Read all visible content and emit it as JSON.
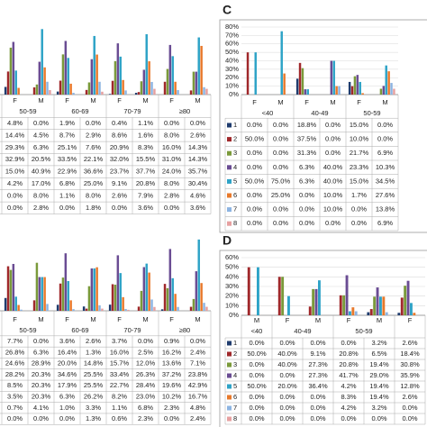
{
  "chart_data": [
    {
      "type": "bar",
      "groups": [
        {
          "label": "50-59",
          "categories": [
            "F",
            "M"
          ]
        },
        {
          "label": "60-69",
          "categories": [
            "F",
            "M"
          ]
        },
        {
          "label": "70-79",
          "categories": [
            "F",
            "M"
          ]
        },
        {
          "label": "≥80",
          "categories": [
            "F",
            "M"
          ]
        }
      ],
      "series": [
        {
          "color": "#1F3C6E",
          "values": [
            4.8,
            0.0,
            1.9,
            0.0,
            0.4,
            1.1,
            0.0,
            0.0
          ],
          "value_labels": [
            "4.8%",
            "0.0%",
            "1.9%",
            "0.0%",
            "0.4%",
            "1.1%",
            "0.0%",
            "0.0%"
          ]
        },
        {
          "color": "#A0282B",
          "values": [
            14.4,
            4.5,
            8.7,
            2.9,
            8.6,
            1.6,
            8.0,
            2.6
          ],
          "value_labels": [
            "14.4%",
            "4.5%",
            "8.7%",
            "2.9%",
            "8.6%",
            "1.6%",
            "8.0%",
            "2.6%"
          ]
        },
        {
          "color": "#7A9A3A",
          "values": [
            29.3,
            6.3,
            25.1,
            7.6,
            20.9,
            8.3,
            16.0,
            14.3
          ],
          "value_labels": [
            "29.3%",
            "6.3%",
            "25.1%",
            "7.6%",
            "20.9%",
            "8.3%",
            "16.0%",
            "14.3%"
          ]
        },
        {
          "color": "#6A4C93",
          "values": [
            32.9,
            20.5,
            33.5,
            22.1,
            32.0,
            15.5,
            31.0,
            14.3
          ],
          "value_labels": [
            "32.9%",
            "20.5%",
            "33.5%",
            "22.1%",
            "32.0%",
            "15.5%",
            "31.0%",
            "14.3%"
          ]
        },
        {
          "color": "#2EA3C7",
          "values": [
            15.0,
            40.9,
            22.9,
            36.6,
            23.7,
            37.7,
            24.0,
            35.7
          ],
          "value_labels": [
            "15.0%",
            "40.9%",
            "22.9%",
            "36.6%",
            "23.7%",
            "37.7%",
            "24.0%",
            "35.7%"
          ]
        },
        {
          "color": "#E8792B",
          "values": [
            4.2,
            17.0,
            6.8,
            25.0,
            9.1,
            20.8,
            8.0,
            30.4
          ],
          "value_labels": [
            "4.2%",
            "17.0%",
            "6.8%",
            "25.0%",
            "9.1%",
            "20.8%",
            "8.0%",
            "30.4%"
          ]
        },
        {
          "color": "#8DB4E2",
          "values": [
            0.0,
            8.0,
            1.1,
            8.0,
            2.6,
            7.9,
            2.8,
            4.6
          ],
          "value_labels": [
            "0.0%",
            "8.0%",
            "1.1%",
            "8.0%",
            "2.6%",
            "7.9%",
            "2.8%",
            "4.6%"
          ]
        },
        {
          "color": "#E6A0A0",
          "values": [
            0.0,
            2.8,
            0.0,
            1.8,
            0.0,
            3.6,
            0.0,
            3.6
          ],
          "value_labels": [
            "0.0%",
            "2.8%",
            "0.0%",
            "1.8%",
            "0.0%",
            "3.6%",
            "0.0%",
            "3.6%"
          ]
        }
      ],
      "ylim": [
        0,
        45
      ],
      "grid": false
    },
    {
      "type": "bar",
      "groups": [
        {
          "label": "50-59",
          "categories": [
            "F",
            "M"
          ]
        },
        {
          "label": "60-69",
          "categories": [
            "F",
            "M"
          ]
        },
        {
          "label": "70-79",
          "categories": [
            "F",
            "M"
          ]
        },
        {
          "label": "≥80",
          "categories": [
            "F",
            "M"
          ]
        }
      ],
      "series": [
        {
          "color": "#1F3C6E",
          "values": [
            7.7,
            0.0,
            3.6,
            2.6,
            3.7,
            0.0,
            0.9,
            0.0
          ],
          "value_labels": [
            "7.7%",
            "0.0%",
            "3.6%",
            "2.6%",
            "3.7%",
            "0.0%",
            "0.9%",
            "0.0%"
          ]
        },
        {
          "color": "#A0282B",
          "values": [
            26.8,
            6.3,
            16.4,
            1.3,
            16.0,
            2.5,
            16.2,
            2.4
          ],
          "value_labels": [
            "26.8%",
            "6.3%",
            "16.4%",
            "1.3%",
            "16.0%",
            "2.5%",
            "16.2%",
            "2.4%"
          ]
        },
        {
          "color": "#7A9A3A",
          "values": [
            24.6,
            28.9,
            20.0,
            14.8,
            15.7,
            12.0,
            13.6,
            7.1
          ],
          "value_labels": [
            "24.6%",
            "28.9%",
            "20.0%",
            "14.8%",
            "15.7%",
            "12.0%",
            "13.6%",
            "7.1%"
          ]
        },
        {
          "color": "#6A4C93",
          "values": [
            28.2,
            20.3,
            34.6,
            25.5,
            33.4,
            26.3,
            37.2,
            23.8
          ],
          "value_labels": [
            "28.2%",
            "20.3%",
            "34.6%",
            "25.5%",
            "33.4%",
            "26.3%",
            "37.2%",
            "23.8%"
          ]
        },
        {
          "color": "#2EA3C7",
          "values": [
            8.5,
            20.3,
            17.9,
            25.5,
            22.7,
            28.4,
            19.6,
            42.9
          ],
          "value_labels": [
            "8.5%",
            "20.3%",
            "17.9%",
            "25.5%",
            "22.7%",
            "28.4%",
            "19.6%",
            "42.9%"
          ]
        },
        {
          "color": "#E8792B",
          "values": [
            3.5,
            20.3,
            6.3,
            26.2,
            8.2,
            23.0,
            10.2,
            16.7
          ],
          "value_labels": [
            "3.5%",
            "20.3%",
            "6.3%",
            "26.2%",
            "8.2%",
            "23.0%",
            "10.2%",
            "16.7%"
          ]
        },
        {
          "color": "#8DB4E2",
          "values": [
            0.7,
            4.1,
            1.0,
            3.3,
            1.1,
            6.8,
            2.3,
            4.8
          ],
          "value_labels": [
            "0.7%",
            "4.1%",
            "1.0%",
            "3.3%",
            "1.1%",
            "6.8%",
            "2.3%",
            "4.8%"
          ]
        },
        {
          "color": "#E6A0A0",
          "values": [
            0.0,
            0.0,
            0.0,
            1.3,
            0.6,
            2.3,
            0.0,
            2.4
          ],
          "value_labels": [
            "0.0%",
            "0.0%",
            "0.0%",
            "1.3%",
            "0.6%",
            "2.3%",
            "0.0%",
            "2.4%"
          ]
        }
      ],
      "ylim": [
        0,
        45
      ],
      "grid": false
    },
    {
      "type": "bar",
      "label": "C",
      "groups": [
        {
          "label": "<40",
          "categories": [
            "F",
            "M"
          ]
        },
        {
          "label": "40-49",
          "categories": [
            "F",
            "M"
          ]
        },
        {
          "label": "50-59",
          "categories": [
            "F",
            "M"
          ]
        }
      ],
      "series": [
        {
          "name": "1",
          "color": "#1F3C6E",
          "values": [
            0.0,
            0.0,
            18.8,
            0.0,
            15.0,
            0.0
          ],
          "value_labels": [
            "0.0%",
            "0.0%",
            "18.8%",
            "0.0%",
            "15.0%",
            "0.0%"
          ]
        },
        {
          "name": "2",
          "color": "#A0282B",
          "values": [
            50.0,
            0.0,
            37.5,
            0.0,
            10.0,
            0.0
          ],
          "value_labels": [
            "50.0%",
            "0.0%",
            "37.5%",
            "0.0%",
            "10.0%",
            "0.0%"
          ]
        },
        {
          "name": "3",
          "color": "#7A9A3A",
          "values": [
            0.0,
            0.0,
            31.3,
            0.0,
            21.7,
            6.9
          ],
          "value_labels": [
            "0.0%",
            "0.0%",
            "31.3%",
            "0.0%",
            "21.7%",
            "6.9%"
          ]
        },
        {
          "name": "4",
          "color": "#6A4C93",
          "values": [
            0.0,
            0.0,
            6.3,
            40.0,
            23.3,
            10.3
          ],
          "value_labels": [
            "0.0%",
            "0.0%",
            "6.3%",
            "40.0%",
            "23.3%",
            "10.3%"
          ]
        },
        {
          "name": "5",
          "color": "#2EA3C7",
          "values": [
            50.0,
            75.0,
            6.3,
            40.0,
            15.0,
            34.5
          ],
          "value_labels": [
            "50.0%",
            "75.0%",
            "6.3%",
            "40.0%",
            "15.0%",
            "34.5%"
          ]
        },
        {
          "name": "6",
          "color": "#E8792B",
          "values": [
            0.0,
            25.0,
            0.0,
            10.0,
            1.7,
            27.6
          ],
          "value_labels": [
            "0.0%",
            "25.0%",
            "0.0%",
            "10.0%",
            "1.7%",
            "27.6%"
          ]
        },
        {
          "name": "7",
          "color": "#8DB4E2",
          "values": [
            0.0,
            0.0,
            0.0,
            10.0,
            0.0,
            13.8
          ],
          "value_labels": [
            "0.0%",
            "0.0%",
            "0.0%",
            "10.0%",
            "0.0%",
            "13.8%"
          ]
        },
        {
          "name": "8",
          "color": "#E6A0A0",
          "values": [
            0.0,
            0.0,
            0.0,
            0.0,
            0.0,
            6.9
          ],
          "value_labels": [
            "0.0%",
            "0.0%",
            "0.0%",
            "0.0%",
            "0.0%",
            "6.9%"
          ]
        }
      ],
      "ylim": [
        0,
        80
      ],
      "yticks": [
        {
          "value": 0,
          "label": "0%"
        },
        {
          "value": 10,
          "label": "10%"
        },
        {
          "value": 20,
          "label": "20%"
        },
        {
          "value": 30,
          "label": "30%"
        },
        {
          "value": 40,
          "label": "40%"
        },
        {
          "value": 50,
          "label": "50%"
        },
        {
          "value": 60,
          "label": "60%"
        },
        {
          "value": 70,
          "label": "70%"
        },
        {
          "value": 80,
          "label": "80%"
        }
      ],
      "grid": true
    },
    {
      "type": "bar",
      "label": "D",
      "groups": [
        {
          "label": "<40",
          "categories": [
            "M"
          ]
        },
        {
          "label": "40-49",
          "categories": [
            "F",
            "M"
          ]
        },
        {
          "label": "50-59",
          "categories": [
            "F",
            "M"
          ]
        },
        {
          "label": null,
          "categories": [
            "F"
          ]
        }
      ],
      "series": [
        {
          "name": "1",
          "color": "#1F3C6E",
          "values": [
            0.0,
            0.0,
            0.0,
            0.0,
            3.2,
            2.6
          ],
          "value_labels": [
            "0.0%",
            "0.0%",
            "0.0%",
            "0.0%",
            "3.2%",
            "2.6%"
          ]
        },
        {
          "name": "2",
          "color": "#A0282B",
          "values": [
            50.0,
            40.0,
            9.1,
            20.8,
            6.5,
            18.4
          ],
          "value_labels": [
            "50.0%",
            "40.0%",
            "9.1%",
            "20.8%",
            "6.5%",
            "18.4%"
          ]
        },
        {
          "name": "3",
          "color": "#7A9A3A",
          "values": [
            0.0,
            40.0,
            27.3,
            20.8,
            19.4,
            30.8
          ],
          "value_labels": [
            "0.0%",
            "40.0%",
            "27.3%",
            "20.8%",
            "19.4%",
            "30.8%"
          ]
        },
        {
          "name": "4",
          "color": "#6A4C93",
          "values": [
            0.0,
            0.0,
            27.3,
            41.7,
            29.0,
            35.9
          ],
          "value_labels": [
            "0.0%",
            "0.0%",
            "27.3%",
            "41.7%",
            "29.0%",
            "35.9%"
          ]
        },
        {
          "name": "5",
          "color": "#2EA3C7",
          "values": [
            50.0,
            20.0,
            36.4,
            4.2,
            19.4,
            12.8
          ],
          "value_labels": [
            "50.0%",
            "20.0%",
            "36.4%",
            "4.2%",
            "19.4%",
            "12.8%"
          ]
        },
        {
          "name": "6",
          "color": "#E8792B",
          "values": [
            0.0,
            0.0,
            0.0,
            8.3,
            19.4,
            2.6
          ],
          "value_labels": [
            "0.0%",
            "0.0%",
            "0.0%",
            "8.3%",
            "19.4%",
            "2.6%"
          ]
        },
        {
          "name": "7",
          "color": "#8DB4E2",
          "values": [
            0.0,
            0.0,
            0.0,
            4.2,
            3.2,
            0.0
          ],
          "value_labels": [
            "0.0%",
            "0.0%",
            "0.0%",
            "4.2%",
            "3.2%",
            "0.0%"
          ]
        },
        {
          "name": "8",
          "color": "#E6A0A0",
          "values": [
            0.0,
            0.0,
            0.0,
            0.0,
            0.0,
            0.0
          ],
          "value_labels": [
            "0.0%",
            "0.0%",
            "0.0%",
            "0.0%",
            "0.0%",
            "0.0%"
          ]
        }
      ],
      "ylim": [
        0,
        60
      ],
      "yticks": [
        {
          "value": 0,
          "label": "0%"
        },
        {
          "value": 10,
          "label": "10%"
        },
        {
          "value": 20,
          "label": "20%"
        },
        {
          "value": 30,
          "label": "30%"
        },
        {
          "value": 40,
          "label": "40%"
        },
        {
          "value": 50,
          "label": "50%"
        },
        {
          "value": 60,
          "label": "60%"
        }
      ],
      "grid": true
    }
  ]
}
